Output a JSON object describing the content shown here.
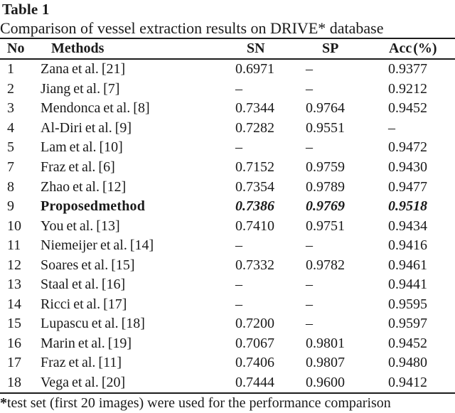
{
  "page": {
    "title": "Table 1",
    "subtitle": "Comparison of vessel extraction results on DRIVE* database"
  },
  "table": {
    "columns": {
      "no": "No",
      "method": "Methods",
      "sn": "SN",
      "sp": "SP",
      "acc": "Acc (%)"
    },
    "rows": [
      {
        "no": "1",
        "method": "Zana et al. [21]",
        "sn": "0.6971",
        "sp": "–",
        "acc": "0.9377",
        "highlight": false
      },
      {
        "no": "2",
        "method": "Jiang et al. [7]",
        "sn": "–",
        "sp": "–",
        "acc": "0.9212",
        "highlight": false
      },
      {
        "no": "3",
        "method": "Mendonca et al. [8]",
        "sn": "0.7344",
        "sp": "0.9764",
        "acc": "0.9452",
        "highlight": false
      },
      {
        "no": "4",
        "method": "Al-Diri et al. [9]",
        "sn": "0.7282",
        "sp": "0.9551",
        "acc": "–",
        "highlight": false
      },
      {
        "no": "5",
        "method": "Lam et al. [10]",
        "sn": "–",
        "sp": "–",
        "acc": "0.9472",
        "highlight": false
      },
      {
        "no": "7",
        "method": "Fraz et al. [6]",
        "sn": "0.7152",
        "sp": "0.9759",
        "acc": "0.9430",
        "highlight": false
      },
      {
        "no": "8",
        "method": "Zhao et al. [12]",
        "sn": "0.7354",
        "sp": "0.9789",
        "acc": "0.9477",
        "highlight": false
      },
      {
        "no": "9",
        "method": "Proposed method",
        "sn": "0.7386",
        "sp": "0.9769",
        "acc": "0.9518",
        "highlight": true
      },
      {
        "no": "10",
        "method": "You et al. [13]",
        "sn": "0.7410",
        "sp": "0.9751",
        "acc": "0.9434",
        "highlight": false
      },
      {
        "no": "11",
        "method": "Niemeijer et al. [14]",
        "sn": "–",
        "sp": "–",
        "acc": "0.9416",
        "highlight": false
      },
      {
        "no": "12",
        "method": "Soares et al. [15]",
        "sn": "0.7332",
        "sp": "0.9782",
        "acc": "0.9461",
        "highlight": false
      },
      {
        "no": "13",
        "method": "Staal et al. [16]",
        "sn": "–",
        "sp": "–",
        "acc": "0.9441",
        "highlight": false
      },
      {
        "no": "14",
        "method": "Ricci et al. [17]",
        "sn": "–",
        "sp": "–",
        "acc": "0.9595",
        "highlight": false
      },
      {
        "no": "15",
        "method": "Lupascu et al. [18]",
        "sn": "0.7200",
        "sp": "–",
        "acc": "0.9597",
        "highlight": false
      },
      {
        "no": "16",
        "method": "Marin et al. [19]",
        "sn": "0.7067",
        "sp": "0.9801",
        "acc": "0.9452",
        "highlight": false
      },
      {
        "no": "17",
        "method": "Fraz et al. [11]",
        "sn": "0.7406",
        "sp": "0.9807",
        "acc": "0.9480",
        "highlight": false
      },
      {
        "no": "18",
        "method": "Vega et al. [20]",
        "sn": "0.7444",
        "sp": "0.9600",
        "acc": "0.9412",
        "highlight": false
      }
    ]
  },
  "footnote": {
    "marker": "*",
    "text": "test set (first 20 images) were used for the performance comparison"
  }
}
